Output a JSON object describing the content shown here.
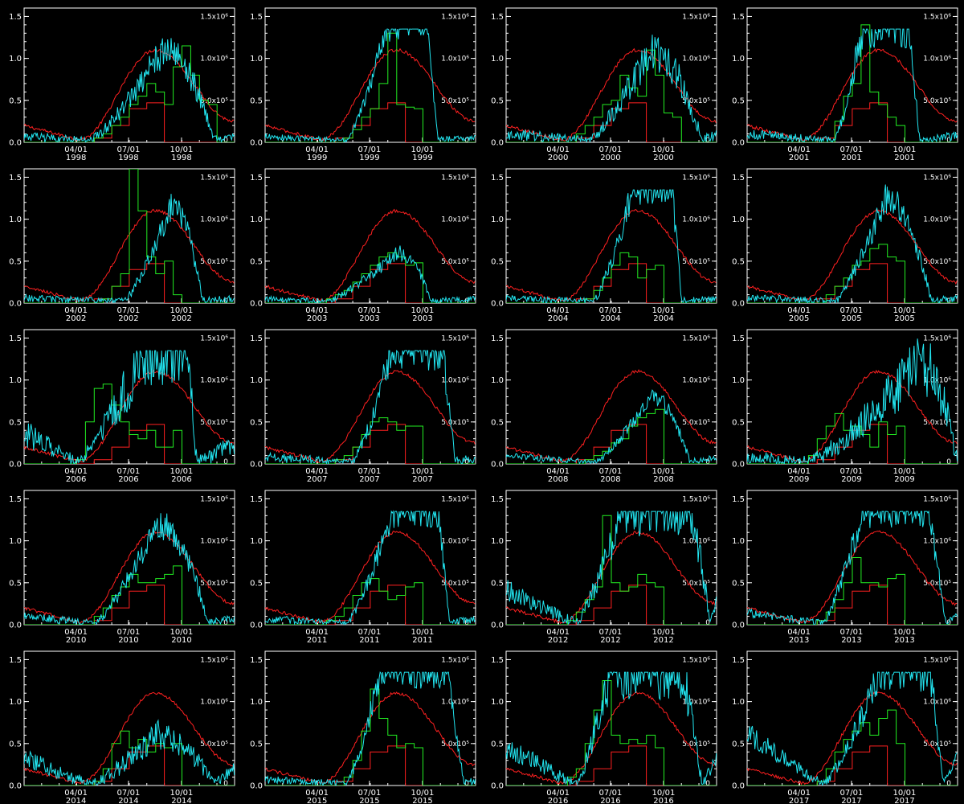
{
  "page": {
    "background_color": "#000000",
    "axis_color": "#ffffff"
  },
  "chart_data": {
    "type": "line",
    "layout": "small-multiples",
    "panel_rows": 5,
    "panel_cols": 4,
    "left_axis": {
      "range": [
        0,
        1.6
      ],
      "ticks": [
        0,
        0.5,
        1.0,
        1.5
      ],
      "tick_labels": [
        "0.0",
        "0.5",
        "1.0",
        "1.5"
      ]
    },
    "right_axis": {
      "range": [
        0,
        1600000
      ],
      "ticks": [
        0,
        500000,
        1000000,
        1500000
      ],
      "tick_labels": [
        "0",
        "5.0x10⁵",
        "1.0x10⁶",
        "1.5x10⁶"
      ]
    },
    "x_axis": {
      "range_days": [
        0,
        365
      ],
      "tick_month_labels": [
        "04/01",
        "07/01",
        "10/01"
      ],
      "tick_days": [
        90,
        181,
        273
      ]
    },
    "series": [
      {
        "key": "red_smooth",
        "color": "#ff2020",
        "style": "seasonal curve with daily noise, peak ~1.1 in mid-August"
      },
      {
        "key": "red_step",
        "color": "#ff2020",
        "style": "monthly step, rises from June, ~0.47 in Aug, drops to 0 on Sep 1"
      },
      {
        "key": "green_step",
        "color": "#22ee22",
        "style": "semi-monthly step, mostly May–August"
      },
      {
        "key": "cyan",
        "color": "#22e5f0",
        "style": "daily noisy series, often saturates ~1.35"
      }
    ],
    "panels": [
      {
        "year": "1998",
        "green": [
          0,
          0,
          0,
          0,
          0,
          0,
          0,
          0,
          0.05,
          0.1,
          0.2,
          0.3,
          0.45,
          0.55,
          0.7,
          0.6,
          0.45,
          0.9,
          1.15,
          0.8,
          0.5,
          0.45,
          0,
          0
        ],
        "cyan": {
          "peak": 1.1,
          "start": 110,
          "peakDay": 240,
          "end": 330,
          "sat": 0,
          "noise": 0.15,
          "winter": 0.05
        }
      },
      {
        "year": "1999",
        "green": [
          0,
          0,
          0,
          0,
          0,
          0,
          0,
          0,
          0,
          0.05,
          0.15,
          0.3,
          0.4,
          0.7,
          1.3,
          0.45,
          0.42,
          0.4,
          0,
          0,
          0,
          0,
          0,
          0
        ],
        "cyan": {
          "peak": 1.35,
          "start": 140,
          "peakDay": 210,
          "end": 300,
          "sat": 1,
          "noise": 0.1,
          "winter": 0.05
        }
      },
      {
        "year": "2000",
        "green": [
          0,
          0,
          0,
          0,
          0,
          0,
          0,
          0,
          0.1,
          0.2,
          0.3,
          0.45,
          0.5,
          0.8,
          0.65,
          0.55,
          1.1,
          0.8,
          0.35,
          0.3,
          0,
          0,
          0,
          0
        ],
        "cyan": {
          "peak": 1.1,
          "start": 140,
          "peakDay": 250,
          "end": 340,
          "sat": 0,
          "noise": 0.18,
          "winter": 0.08
        }
      },
      {
        "year": "2001",
        "green": [
          0,
          0,
          0,
          0,
          0,
          0,
          0,
          0,
          0,
          0,
          0.25,
          0.55,
          0.7,
          1.4,
          0.6,
          0.45,
          0.3,
          0.2,
          0,
          0,
          0,
          0,
          0,
          0
        ],
        "cyan": {
          "peak": 1.35,
          "start": 150,
          "peakDay": 200,
          "end": 300,
          "sat": 1,
          "noise": 0.15,
          "winter": 0.08
        }
      },
      {
        "year": "2002",
        "green": [
          0,
          0,
          0,
          0,
          0,
          0,
          0,
          0,
          0,
          0.05,
          0.2,
          0.35,
          1.6,
          1.1,
          0.55,
          0.35,
          0.5,
          0.1,
          0,
          0,
          0,
          0,
          0,
          0
        ],
        "cyan": {
          "peak": 1.15,
          "start": 170,
          "peakDay": 255,
          "end": 310,
          "sat": 0,
          "noise": 0.12,
          "winter": 0.04
        }
      },
      {
        "year": "2003",
        "green": [
          0,
          0,
          0,
          0,
          0,
          0,
          0,
          0.05,
          0.1,
          0.15,
          0.25,
          0.35,
          0.45,
          0.55,
          0.6,
          0.55,
          0.45,
          0.48,
          0,
          0,
          0,
          0,
          0,
          0
        ],
        "cyan": {
          "peak": 0.6,
          "start": 100,
          "peakDay": 230,
          "end": 290,
          "sat": 0,
          "noise": 0.1,
          "winter": 0.03
        }
      },
      {
        "year": "2004",
        "green": [
          0,
          0,
          0,
          0,
          0,
          0,
          0,
          0,
          0,
          0.05,
          0.15,
          0.3,
          0.45,
          0.6,
          0.55,
          0.3,
          0.4,
          0.45,
          0,
          0,
          0,
          0,
          0,
          0
        ],
        "cyan": {
          "peak": 1.35,
          "start": 150,
          "peakDay": 220,
          "end": 305,
          "sat": 1,
          "noise": 0.12,
          "winter": 0.04
        }
      },
      {
        "year": "2005",
        "green": [
          0,
          0,
          0,
          0,
          0,
          0,
          0,
          0,
          0,
          0.1,
          0.2,
          0.3,
          0.45,
          0.5,
          0.65,
          0.7,
          0.55,
          0.5,
          0,
          0,
          0,
          0,
          0,
          0
        ],
        "cyan": {
          "peak": 1.25,
          "start": 150,
          "peakDay": 240,
          "end": 320,
          "sat": 0,
          "noise": 0.12,
          "winter": 0.05
        }
      },
      {
        "year": "2006",
        "green": [
          0,
          0,
          0,
          0,
          0,
          0,
          0.05,
          0.5,
          0.9,
          0.95,
          0.7,
          0.5,
          0.35,
          0.3,
          0.4,
          0.2,
          0.2,
          0.4,
          0,
          0,
          0,
          0,
          0,
          0
        ],
        "cyan": {
          "peak": 1.35,
          "start": 90,
          "peakDay": 210,
          "end": 300,
          "sat": 1,
          "noise": 0.25,
          "winter": 0.35
        }
      },
      {
        "year": "2007",
        "green": [
          0,
          0,
          0,
          0,
          0,
          0,
          0,
          0,
          0.05,
          0.1,
          0.2,
          0.35,
          0.5,
          0.55,
          0.5,
          0.4,
          0.45,
          0.45,
          0,
          0,
          0,
          0,
          0,
          0
        ],
        "cyan": {
          "peak": 1.35,
          "start": 150,
          "peakDay": 220,
          "end": 330,
          "sat": 1,
          "noise": 0.15,
          "winter": 0.06
        }
      },
      {
        "year": "2008",
        "green": [
          0,
          0,
          0,
          0,
          0,
          0,
          0,
          0,
          0,
          0.05,
          0.1,
          0.15,
          0.25,
          0.3,
          0.45,
          0.55,
          0.6,
          0.65,
          0,
          0,
          0,
          0,
          0,
          0
        ],
        "cyan": {
          "peak": 0.8,
          "start": 150,
          "peakDay": 250,
          "end": 320,
          "sat": 0,
          "noise": 0.1,
          "winter": 0.08
        }
      },
      {
        "year": "2009",
        "green": [
          0,
          0,
          0,
          0,
          0,
          0,
          0,
          0.1,
          0.3,
          0.45,
          0.6,
          0.4,
          0.45,
          0.35,
          0.2,
          0.5,
          0.35,
          0.45,
          0,
          0,
          0,
          0,
          0,
          0
        ],
        "cyan": {
          "peak": 1.2,
          "start": 100,
          "peakDay": 300,
          "end": 365,
          "sat": 0,
          "noise": 0.25,
          "winter": 0.05
        }
      },
      {
        "year": "2010",
        "green": [
          0,
          0,
          0,
          0,
          0,
          0,
          0,
          0,
          0.1,
          0.2,
          0.35,
          0.45,
          0.6,
          0.5,
          0.5,
          0.55,
          0.6,
          0.7,
          0,
          0,
          0,
          0,
          0,
          0
        ],
        "cyan": {
          "peak": 1.2,
          "start": 120,
          "peakDay": 230,
          "end": 320,
          "sat": 0,
          "noise": 0.12,
          "winter": 0.08
        }
      },
      {
        "year": "2011",
        "green": [
          0,
          0,
          0,
          0,
          0,
          0,
          0,
          0.05,
          0.1,
          0.2,
          0.35,
          0.5,
          0.55,
          0.4,
          0.3,
          0.35,
          0.45,
          0.5,
          0,
          0,
          0,
          0,
          0,
          0
        ],
        "cyan": {
          "peak": 1.35,
          "start": 140,
          "peakDay": 220,
          "end": 320,
          "sat": 1,
          "noise": 0.12,
          "winter": 0.05
        }
      },
      {
        "year": "2012",
        "green": [
          0,
          0,
          0,
          0,
          0,
          0,
          0,
          0.05,
          0.15,
          0.3,
          0.45,
          1.3,
          0.5,
          0.4,
          0.45,
          0.6,
          0.5,
          0.45,
          0,
          0,
          0,
          0,
          0,
          0
        ],
        "cyan": {
          "peak": 1.35,
          "start": 120,
          "peakDay": 200,
          "end": 355,
          "sat": 1,
          "noise": 0.18,
          "winter": 0.4
        }
      },
      {
        "year": "2013",
        "green": [
          0,
          0,
          0,
          0,
          0,
          0,
          0,
          0,
          0.05,
          0.15,
          0.3,
          0.5,
          0.8,
          0.5,
          0.5,
          0.45,
          0.55,
          0.6,
          0,
          0,
          0,
          0,
          0,
          0
        ],
        "cyan": {
          "peak": 1.35,
          "start": 130,
          "peakDay": 200,
          "end": 345,
          "sat": 1,
          "noise": 0.12,
          "winter": 0.12
        }
      },
      {
        "year": "2014",
        "green": [
          0,
          0,
          0,
          0,
          0,
          0,
          0,
          0,
          0.05,
          0.2,
          0.5,
          0.65,
          0.45,
          0.55,
          0.4,
          0.5,
          0.45,
          0.5,
          0,
          0,
          0,
          0,
          0,
          0
        ],
        "cyan": {
          "peak": 0.6,
          "start": 110,
          "peakDay": 230,
          "end": 330,
          "sat": 0,
          "noise": 0.2,
          "winter": 0.3
        }
      },
      {
        "year": "2015",
        "green": [
          0,
          0,
          0,
          0,
          0,
          0,
          0,
          0,
          0,
          0.1,
          0.3,
          0.65,
          1.15,
          0.8,
          0.6,
          0.45,
          0.5,
          0.45,
          0,
          0,
          0,
          0,
          0,
          0
        ],
        "cyan": {
          "peak": 1.35,
          "start": 140,
          "peakDay": 200,
          "end": 345,
          "sat": 1,
          "noise": 0.12,
          "winter": 0.05
        }
      },
      {
        "year": "2016",
        "green": [
          0,
          0,
          0,
          0,
          0,
          0,
          0,
          0.1,
          0.2,
          0.5,
          0.9,
          1.25,
          0.6,
          0.5,
          0.55,
          0.5,
          0.6,
          0.45,
          0,
          0,
          0,
          0,
          0,
          0
        ],
        "cyan": {
          "peak": 1.35,
          "start": 120,
          "peakDay": 180,
          "end": 340,
          "sat": 1,
          "noise": 0.2,
          "winter": 0.45
        }
      },
      {
        "year": "2017",
        "green": [
          0,
          0,
          0,
          0,
          0,
          0,
          0,
          0,
          0.05,
          0.2,
          0.4,
          0.55,
          0.65,
          0.75,
          0.6,
          0.8,
          0.9,
          0.5,
          0,
          0,
          0,
          0,
          0,
          0
        ],
        "cyan": {
          "peak": 1.35,
          "start": 130,
          "peakDay": 230,
          "end": 340,
          "sat": 1,
          "noise": 0.15,
          "winter": 0.6
        }
      }
    ]
  }
}
